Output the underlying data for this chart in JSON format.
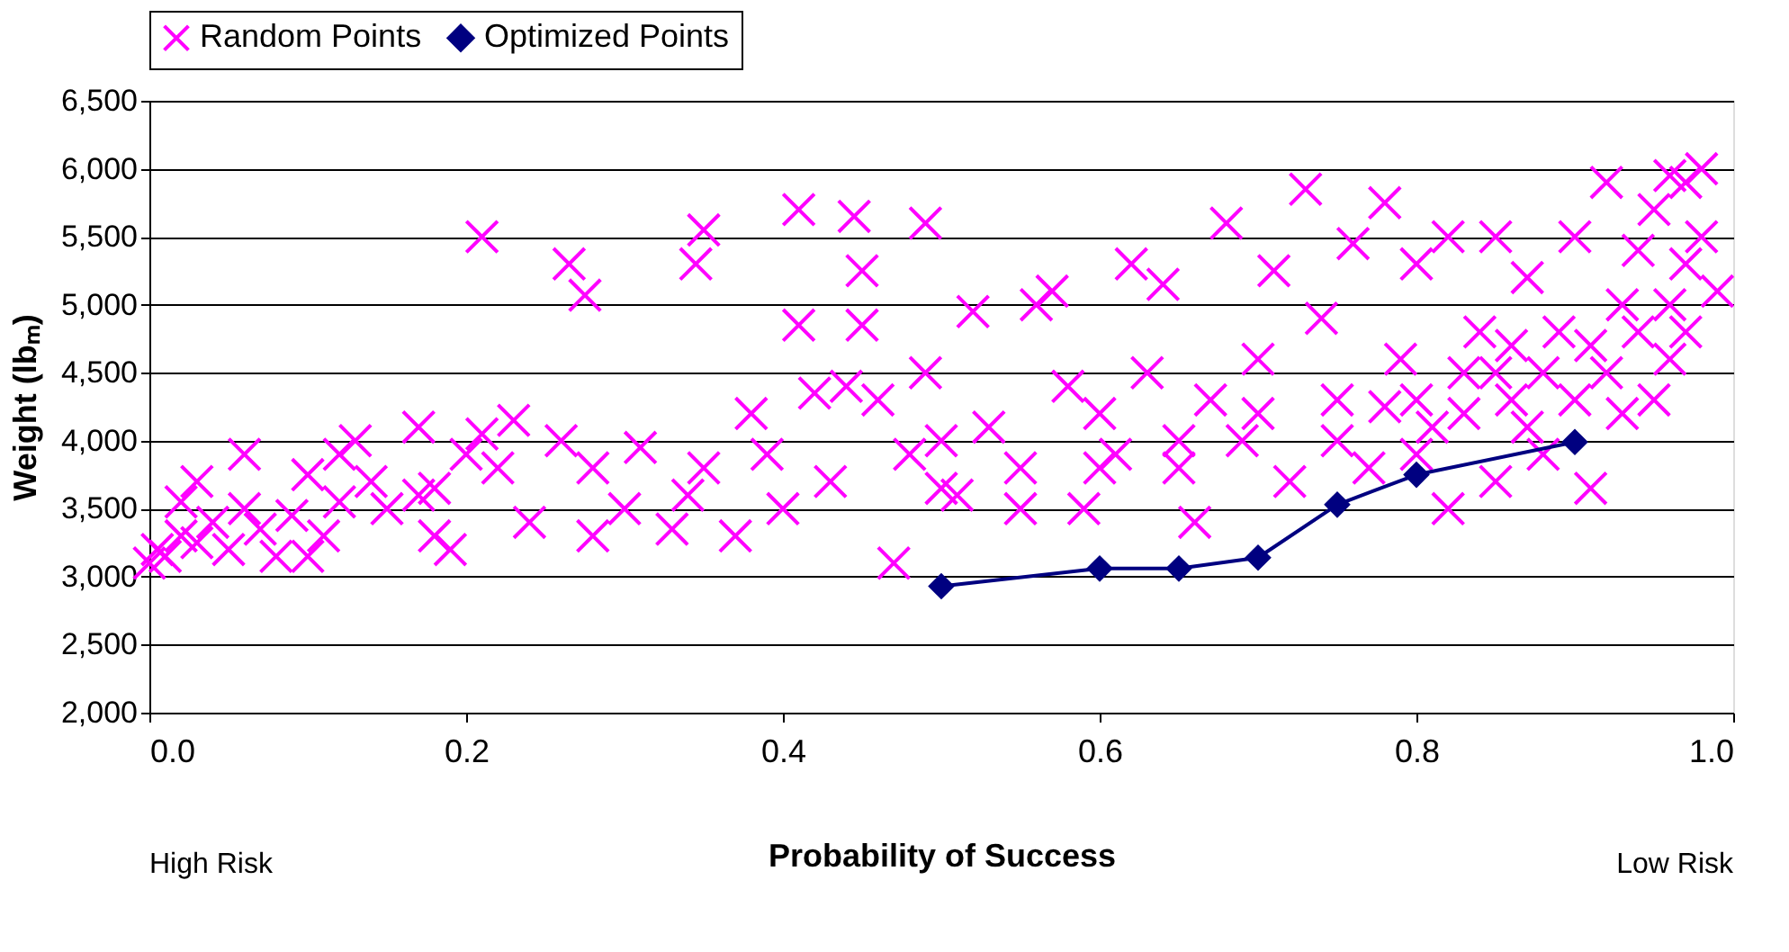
{
  "chart_data": {
    "type": "scatter",
    "xlabel": "Probability of Success",
    "ylabel": "Weight (lbₘ)",
    "xlim": [
      0,
      1
    ],
    "xticks": [
      {
        "value": 0,
        "label": "0.0"
      },
      0.2,
      0.4,
      0.6,
      0.8,
      {
        "value": 1,
        "label": "1.0"
      }
    ],
    "ylim": [
      2000,
      6500
    ],
    "yticks": [
      {
        "value": 2000,
        "label": "2,000"
      },
      {
        "value": 2500,
        "label": "2,500"
      },
      {
        "value": 3000,
        "label": "3,000"
      },
      {
        "value": 3500,
        "label": "3,500"
      },
      {
        "value": 4000,
        "label": "4,000"
      },
      {
        "value": 4500,
        "label": "4,500"
      },
      {
        "value": 5000,
        "label": "5,000"
      },
      {
        "value": 5500,
        "label": "5,500"
      },
      {
        "value": 6000,
        "label": "6,000"
      },
      {
        "value": 6500,
        "label": "6,500"
      }
    ],
    "grid": "y",
    "legend": "top",
    "annotations": [
      "High Risk",
      "Low Risk"
    ],
    "series": [
      {
        "name": "Random Points",
        "type": "scatter",
        "marker": "cross",
        "color": "#ff00ff",
        "x": [
          0.0,
          0.005,
          0.01,
          0.02,
          0.02,
          0.03,
          0.03,
          0.04,
          0.05,
          0.06,
          0.06,
          0.07,
          0.08,
          0.09,
          0.1,
          0.1,
          0.11,
          0.12,
          0.12,
          0.13,
          0.14,
          0.15,
          0.17,
          0.17,
          0.18,
          0.18,
          0.19,
          0.2,
          0.21,
          0.21,
          0.22,
          0.23,
          0.24,
          0.26,
          0.265,
          0.275,
          0.28,
          0.28,
          0.3,
          0.31,
          0.33,
          0.34,
          0.345,
          0.35,
          0.35,
          0.37,
          0.38,
          0.39,
          0.4,
          0.41,
          0.41,
          0.42,
          0.43,
          0.44,
          0.445,
          0.45,
          0.45,
          0.46,
          0.47,
          0.48,
          0.49,
          0.49,
          0.5,
          0.5,
          0.51,
          0.52,
          0.53,
          0.55,
          0.56,
          0.57,
          0.58,
          0.59,
          0.6,
          0.61,
          0.62,
          0.63,
          0.64,
          0.65,
          0.66,
          0.67,
          0.68,
          0.69,
          0.7,
          0.71,
          0.72,
          0.73,
          0.74,
          0.75,
          0.76,
          0.77,
          0.78,
          0.78,
          0.79,
          0.8,
          0.8,
          0.81,
          0.82,
          0.82,
          0.83,
          0.84,
          0.85,
          0.85,
          0.86,
          0.86,
          0.87,
          0.87,
          0.88,
          0.88,
          0.89,
          0.9,
          0.9,
          0.91,
          0.91,
          0.92,
          0.92,
          0.93,
          0.93,
          0.94,
          0.94,
          0.95,
          0.95,
          0.96,
          0.96,
          0.97,
          0.97,
          0.98,
          0.98,
          0.99,
          0.97,
          0.96,
          0.85,
          0.83,
          0.8,
          0.75,
          0.7,
          0.65,
          0.6,
          0.55
        ],
        "values": [
          3100,
          3200,
          3150,
          3300,
          3550,
          3700,
          3250,
          3400,
          3200,
          3900,
          3500,
          3350,
          3150,
          3450,
          3150,
          3750,
          3300,
          3550,
          3900,
          4000,
          3700,
          3500,
          3600,
          4100,
          3650,
          3300,
          3200,
          3900,
          5500,
          4050,
          3800,
          4150,
          3400,
          4000,
          5300,
          5070,
          3300,
          3800,
          3500,
          3950,
          3350,
          3600,
          5300,
          5550,
          3800,
          3300,
          4200,
          3900,
          3500,
          4850,
          5700,
          4350,
          3700,
          4400,
          5650,
          5250,
          4850,
          4300,
          3100,
          3900,
          5600,
          4500,
          4000,
          3650,
          3600,
          4950,
          4100,
          3500,
          5000,
          5100,
          4400,
          3500,
          4200,
          3900,
          5300,
          4500,
          5150,
          3800,
          3400,
          4300,
          5600,
          4000,
          4600,
          5250,
          3700,
          5850,
          4900,
          4300,
          5450,
          3800,
          5750,
          4250,
          4600,
          5300,
          3900,
          4100,
          5500,
          3500,
          4500,
          4800,
          5500,
          3700,
          4300,
          4700,
          4100,
          5200,
          4500,
          3900,
          4800,
          4300,
          5500,
          3650,
          4700,
          5900,
          4500,
          4200,
          5000,
          4800,
          5400,
          4300,
          5700,
          5000,
          4600,
          5900,
          5300,
          6000,
          5500,
          5100,
          4800,
          5950,
          4500,
          4200,
          4300,
          4000,
          4200,
          4000,
          3800,
          3800
        ]
      },
      {
        "name": "Optimized Points",
        "type": "line",
        "marker": "diamond",
        "color": "#000080",
        "x": [
          0.5,
          0.6,
          0.65,
          0.7,
          0.75,
          0.8,
          0.9
        ],
        "values": [
          2930,
          3060,
          3060,
          3140,
          3530,
          3750,
          3990
        ]
      }
    ]
  }
}
